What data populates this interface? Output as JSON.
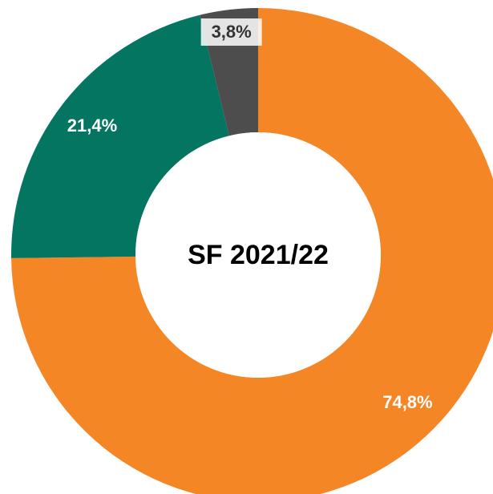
{
  "chart_data": {
    "type": "donut",
    "title": "SF 2021/22",
    "categories": [
      null,
      null,
      null
    ],
    "values": [
      74.8,
      21.4,
      3.8
    ],
    "value_labels": [
      "74,8%",
      "21,4%",
      "3,8%"
    ],
    "colors": [
      "#f58626",
      "#037561",
      "#4d4d4d"
    ]
  }
}
